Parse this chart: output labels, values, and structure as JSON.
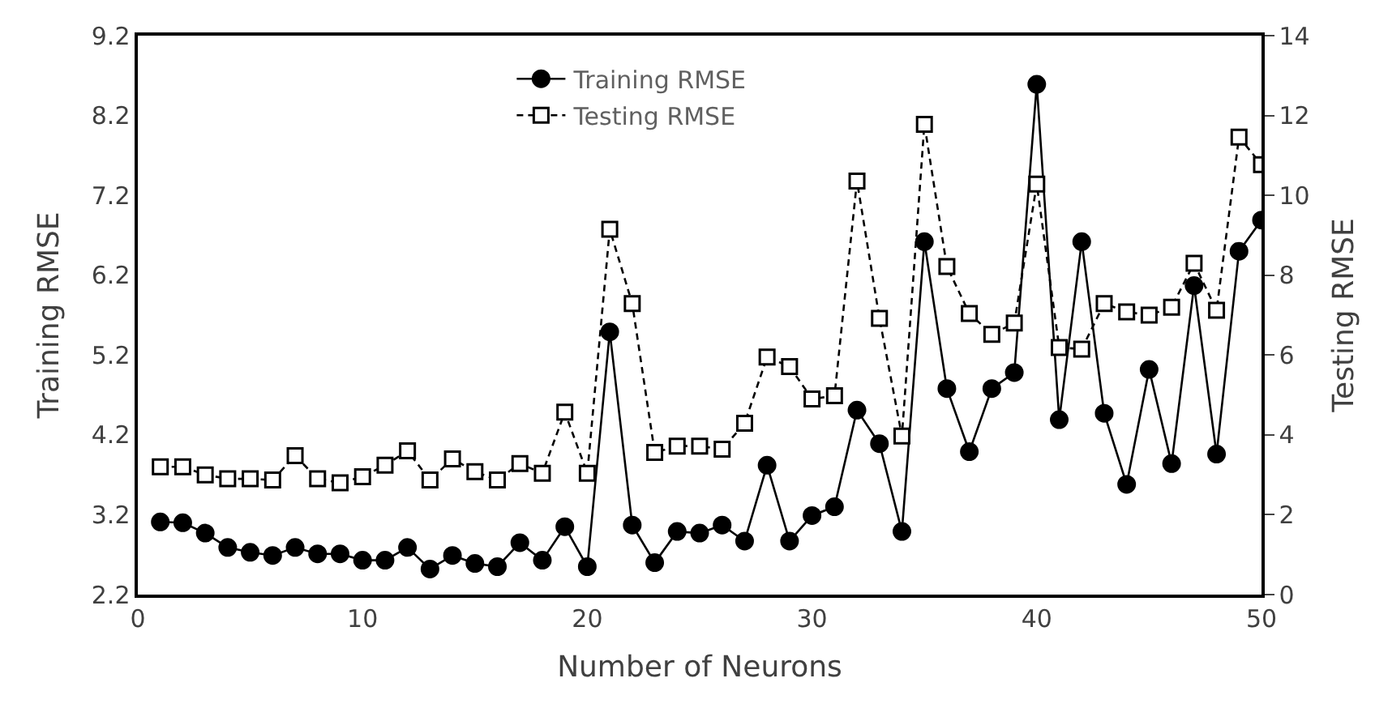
{
  "chart_data": {
    "type": "line",
    "xlabel": "Number of Neurons",
    "ylabel": "Training RMSE",
    "y2label": "Testing RMSE",
    "x": [
      1,
      2,
      3,
      4,
      5,
      6,
      7,
      8,
      9,
      10,
      11,
      12,
      13,
      14,
      15,
      16,
      17,
      18,
      19,
      20,
      21,
      22,
      23,
      24,
      25,
      26,
      27,
      28,
      29,
      30,
      31,
      32,
      33,
      34,
      35,
      36,
      37,
      38,
      39,
      40,
      41,
      42,
      43,
      44,
      45,
      46,
      47,
      48,
      49,
      50
    ],
    "xlim": [
      0,
      50
    ],
    "xticks": [
      0,
      10,
      20,
      30,
      40,
      50
    ],
    "ylim": [
      2.2,
      9.2
    ],
    "yticks": [
      2.2,
      3.2,
      4.2,
      5.2,
      6.2,
      7.2,
      8.2,
      9.2
    ],
    "y2lim": [
      0,
      14
    ],
    "y2ticks": [
      0,
      2,
      4,
      6,
      8,
      10,
      12,
      14
    ],
    "legend": "top",
    "series": [
      {
        "name": "Training RMSE",
        "color": "#000000",
        "marker": "circle",
        "line_style": "solid",
        "values": [
          3.11,
          3.1,
          2.97,
          2.79,
          2.73,
          2.69,
          2.79,
          2.71,
          2.71,
          2.63,
          2.63,
          2.79,
          2.52,
          2.69,
          2.59,
          2.55,
          2.85,
          2.63,
          3.05,
          2.55,
          5.49,
          3.07,
          2.6,
          2.99,
          2.97,
          3.07,
          2.87,
          3.82,
          2.87,
          3.19,
          3.3,
          4.51,
          4.09,
          2.99,
          6.62,
          4.78,
          3.99,
          4.78,
          4.98,
          8.59,
          4.39,
          6.62,
          4.47,
          3.58,
          5.02,
          3.84,
          6.07,
          3.96,
          6.5,
          6.89
        ]
      },
      {
        "name": "Testing RMSE",
        "color": "#000000",
        "marker": "square",
        "line_style": "dashed",
        "axis": "y2",
        "values": [
          3.2,
          3.2,
          3.0,
          2.9,
          2.9,
          2.87,
          3.48,
          2.9,
          2.8,
          2.95,
          3.24,
          3.6,
          2.87,
          3.4,
          3.08,
          2.87,
          3.28,
          3.04,
          4.57,
          3.04,
          9.15,
          7.29,
          3.56,
          3.72,
          3.72,
          3.64,
          4.29,
          5.95,
          5.71,
          4.9,
          4.98,
          10.36,
          6.92,
          3.97,
          11.78,
          8.22,
          7.04,
          6.52,
          6.8,
          10.28,
          6.19,
          6.15,
          7.29,
          7.08,
          7.0,
          7.2,
          8.3,
          7.12,
          11.46,
          10.77
        ]
      }
    ]
  }
}
